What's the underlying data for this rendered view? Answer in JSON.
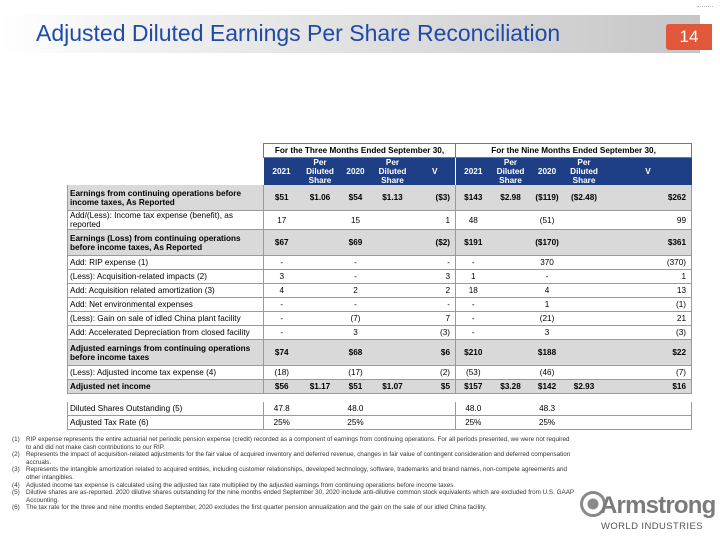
{
  "header": {
    "title": "Adjusted Diluted Earnings Per Share Reconciliation",
    "page_number": "14"
  },
  "table": {
    "group_headers": [
      "For the Three Months Ended September 30,",
      "For the Nine Months Ended September 30,"
    ],
    "column_headers": [
      "2021",
      "Per Diluted Share",
      "2020",
      "Per Diluted Share",
      "V",
      "2021",
      "Per Diluted Share",
      "2020",
      "Per Diluted Share",
      "V"
    ],
    "rows": [
      {
        "label": "Earnings from continuing operations before income taxes, As Reported",
        "cells": [
          "$51",
          "$1.06",
          "$54",
          "$1.13",
          "($3)",
          "$143",
          "$2.98",
          "($119)",
          "($2.48)",
          "$262"
        ]
      },
      {
        "label": "Add/(Less): Income tax expense (benefit), as reported",
        "cells": [
          "17",
          "",
          "15",
          "",
          "1",
          "48",
          "",
          "(51)",
          "",
          "99"
        ]
      },
      {
        "label": "Earnings (Loss) from continuing operations before income taxes, As Reported",
        "cells": [
          "$67",
          "",
          "$69",
          "",
          "($2)",
          "$191",
          "",
          "($170)",
          "",
          "$361"
        ]
      },
      {
        "label": "Add: RIP expense (1)",
        "cells": [
          "-",
          "",
          "-",
          "",
          "-",
          "-",
          "",
          "370",
          "",
          "(370)"
        ]
      },
      {
        "label": "(Less): Acquisition-related impacts (2)",
        "cells": [
          "3",
          "",
          "-",
          "",
          "3",
          "1",
          "",
          "-",
          "",
          "1"
        ]
      },
      {
        "label": "Add: Acquisition related amortization (3)",
        "cells": [
          "4",
          "",
          "2",
          "",
          "2",
          "18",
          "",
          "4",
          "",
          "13"
        ]
      },
      {
        "label": "Add: Net environmental expenses",
        "cells": [
          "-",
          "",
          "-",
          "",
          "-",
          "-",
          "",
          "1",
          "",
          "(1)"
        ]
      },
      {
        "label": "(Less): Gain on sale of idled China plant facility",
        "cells": [
          "-",
          "",
          "(7)",
          "",
          "7",
          "-",
          "",
          "(21)",
          "",
          "21"
        ]
      },
      {
        "label": "Add: Accelerated Depreciation from closed facility",
        "cells": [
          "-",
          "",
          "3",
          "",
          "(3)",
          "-",
          "",
          "3",
          "",
          "(3)"
        ]
      },
      {
        "label": "Adjusted earnings from continuing operations before income taxes",
        "cells": [
          "$74",
          "",
          "$68",
          "",
          "$6",
          "$210",
          "",
          "$188",
          "",
          "$22"
        ]
      },
      {
        "label": "(Less): Adjusted income tax expense (4)",
        "cells": [
          "(18)",
          "",
          "(17)",
          "",
          "(2)",
          "(53)",
          "",
          "(46)",
          "",
          "(7)"
        ]
      },
      {
        "label": "Adjusted net income",
        "cells": [
          "$56",
          "$1.17",
          "$51",
          "$1.07",
          "$5",
          "$157",
          "$3.28",
          "$142",
          "$2.93",
          "$16"
        ]
      },
      {
        "label": "Diluted Shares Outstanding (5)",
        "cells": [
          "47.8",
          "",
          "48.0",
          "",
          "",
          "48.0",
          "",
          "48.3",
          "",
          ""
        ]
      },
      {
        "label": "Adjusted Tax Rate (6)",
        "cells": [
          "25%",
          "",
          "25%",
          "",
          "",
          "25%",
          "",
          "25%",
          "",
          ""
        ]
      }
    ]
  },
  "notes": [
    {
      "num": "(1)",
      "text": "RIP expense represents the entire actuarial net periodic pension expense (credit) recorded as a component of earnings from continuing operations. For all periods presented, we were not required to and did not make cash contributions to our RIP."
    },
    {
      "num": "(2)",
      "text": "Represents the impact of acquisition-related adjustments for the fair value of acquired inventory and deferred revenue, changes in fair value of contingent consideration and deferred compensation accruals."
    },
    {
      "num": "(3)",
      "text": "Represents the intangible amortization related to acquired entities, including customer relationships, developed technology, software, trademarks and brand names, non-compete agreements and other intangibles."
    },
    {
      "num": "(4)",
      "text": "Adjusted income tax expense is calculated using the adjusted tax rate multiplied by the adjusted earnings from continuing operations before income taxes."
    },
    {
      "num": "(5)",
      "text": "Dilutive shares are as-reported. 2020 dilutive shares outstanding for the nine months ended September 30, 2020 include anti-dilutive common stock equivalents which are excluded from U.S. GAAP Accounting."
    },
    {
      "num": "(6)",
      "text": "The tax rate for the three and nine months ended September, 2020 excludes the first quarter pension annualization and the gain on the sale of our idled China facility."
    }
  ],
  "logo": {
    "word": "Armstrong",
    "sub": "WORLD INDUSTRIES"
  },
  "colors": {
    "title_blue": "#1f4aa8",
    "header_navy": "#1e3f86",
    "accent_orange": "#e0573a",
    "shade_gray": "#d9d9d9"
  }
}
